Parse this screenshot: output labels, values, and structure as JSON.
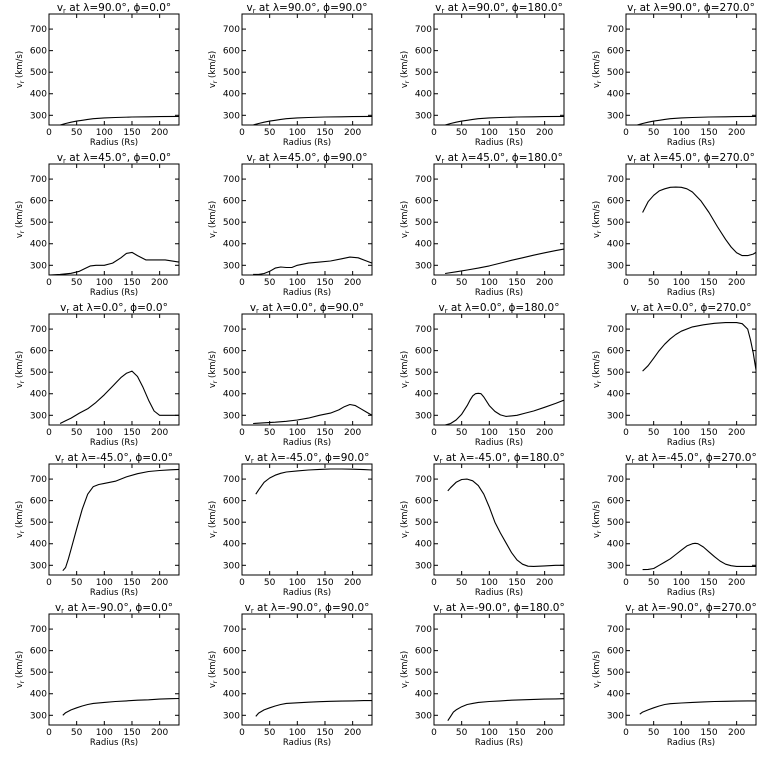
{
  "chart_data": {
    "type": "line",
    "layout": "5x4 grid",
    "xlabel": "Radius (Rs)",
    "ylabel": "v<sub>r</sub> (km/s)",
    "xlim": [
      0,
      235
    ],
    "ylim": [
      255,
      770
    ],
    "xticks": [
      0,
      50,
      100,
      150,
      200
    ],
    "yticks": [
      300,
      400,
      500,
      600,
      700
    ],
    "panels": [
      {
        "title_lambda": "90.0",
        "title_phi": "0.0",
        "x": [
          20,
          30,
          40,
          50,
          60,
          70,
          80,
          100,
          120,
          150,
          180,
          200,
          235
        ],
        "y": [
          255,
          262,
          268,
          273,
          277,
          281,
          284,
          288,
          290,
          292,
          293,
          294,
          295
        ]
      },
      {
        "title_lambda": "90.0",
        "title_phi": "90.0",
        "x": [
          20,
          30,
          40,
          50,
          60,
          70,
          80,
          100,
          120,
          150,
          180,
          200,
          235
        ],
        "y": [
          255,
          262,
          268,
          273,
          277,
          281,
          284,
          288,
          290,
          292,
          293,
          294,
          295
        ]
      },
      {
        "title_lambda": "90.0",
        "title_phi": "180.0",
        "x": [
          20,
          30,
          40,
          50,
          60,
          70,
          80,
          100,
          120,
          150,
          180,
          200,
          235
        ],
        "y": [
          255,
          262,
          268,
          273,
          277,
          281,
          284,
          288,
          290,
          292,
          293,
          294,
          295
        ]
      },
      {
        "title_lambda": "90.0",
        "title_phi": "270.0",
        "x": [
          20,
          30,
          40,
          50,
          60,
          70,
          80,
          100,
          120,
          150,
          180,
          200,
          235
        ],
        "y": [
          255,
          262,
          268,
          273,
          277,
          281,
          284,
          288,
          290,
          292,
          293,
          294,
          295
        ]
      },
      {
        "title_lambda": "45.0",
        "title_phi": "0.0",
        "x": [
          0,
          20,
          40,
          55,
          65,
          75,
          85,
          100,
          115,
          130,
          140,
          150,
          160,
          175,
          190,
          210,
          235
        ],
        "y": [
          255,
          258,
          263,
          272,
          285,
          297,
          300,
          300,
          310,
          335,
          355,
          360,
          345,
          325,
          325,
          325,
          315
        ]
      },
      {
        "title_lambda": "45.0",
        "title_phi": "90.0",
        "x": [
          20,
          30,
          40,
          50,
          60,
          70,
          80,
          90,
          100,
          120,
          140,
          160,
          180,
          195,
          210,
          225,
          235
        ],
        "y": [
          258,
          258,
          262,
          272,
          287,
          292,
          290,
          290,
          300,
          310,
          315,
          320,
          330,
          338,
          335,
          320,
          310
        ]
      },
      {
        "title_lambda": "45.0",
        "title_phi": "180.0",
        "x": [
          20,
          40,
          60,
          80,
          100,
          120,
          140,
          160,
          180,
          200,
          220,
          235
        ],
        "y": [
          262,
          270,
          278,
          287,
          297,
          310,
          323,
          335,
          347,
          358,
          368,
          375
        ]
      },
      {
        "title_lambda": "45.0",
        "title_phi": "270.0",
        "x": [
          30,
          40,
          50,
          60,
          70,
          80,
          90,
          100,
          110,
          120,
          135,
          150,
          165,
          180,
          190,
          200,
          210,
          220,
          230,
          235
        ],
        "y": [
          545,
          595,
          625,
          645,
          655,
          662,
          663,
          662,
          655,
          640,
          600,
          545,
          480,
          420,
          385,
          358,
          345,
          345,
          352,
          360
        ]
      },
      {
        "title_lambda": "0.0",
        "title_phi": "0.0",
        "x": [
          20,
          30,
          40,
          55,
          70,
          85,
          100,
          115,
          130,
          140,
          150,
          160,
          170,
          180,
          190,
          200,
          215,
          235
        ],
        "y": [
          262,
          275,
          287,
          310,
          330,
          360,
          395,
          435,
          475,
          495,
          505,
          480,
          430,
          370,
          320,
          300,
          300,
          300
        ]
      },
      {
        "title_lambda": "0.0",
        "title_phi": "90.0",
        "x": [
          20,
          40,
          60,
          80,
          100,
          120,
          140,
          160,
          175,
          185,
          195,
          205,
          215,
          225,
          235
        ],
        "y": [
          262,
          265,
          268,
          272,
          278,
          287,
          300,
          310,
          325,
          340,
          350,
          345,
          330,
          315,
          300
        ]
      },
      {
        "title_lambda": "0.0",
        "title_phi": "180.0",
        "x": [
          20,
          30,
          40,
          50,
          55,
          60,
          65,
          70,
          75,
          80,
          85,
          90,
          100,
          110,
          120,
          130,
          140,
          150,
          165,
          180,
          200,
          220,
          235
        ],
        "y": [
          255,
          262,
          278,
          305,
          325,
          345,
          370,
          390,
          400,
          402,
          400,
          385,
          345,
          318,
          302,
          295,
          297,
          300,
          310,
          320,
          337,
          355,
          370
        ]
      },
      {
        "title_lambda": "0.0",
        "title_phi": "270.0",
        "x": [
          30,
          40,
          50,
          60,
          70,
          80,
          90,
          100,
          120,
          140,
          160,
          180,
          200,
          210,
          220,
          225,
          230,
          235
        ],
        "y": [
          505,
          530,
          565,
          600,
          630,
          655,
          675,
          690,
          710,
          720,
          727,
          730,
          730,
          725,
          700,
          650,
          590,
          510
        ]
      },
      {
        "title_lambda": "-45.0",
        "title_phi": "0.0",
        "x": [
          25,
          30,
          35,
          40,
          50,
          60,
          70,
          80,
          90,
          100,
          120,
          140,
          160,
          180,
          200,
          220,
          235
        ],
        "y": [
          275,
          290,
          330,
          375,
          470,
          560,
          630,
          665,
          675,
          680,
          690,
          710,
          725,
          735,
          740,
          743,
          745
        ]
      },
      {
        "title_lambda": "-45.0",
        "title_phi": "90.0",
        "x": [
          25,
          30,
          40,
          50,
          60,
          70,
          80,
          100,
          120,
          140,
          160,
          180,
          200,
          220,
          235
        ],
        "y": [
          630,
          650,
          685,
          705,
          718,
          727,
          733,
          738,
          742,
          745,
          747,
          747,
          746,
          744,
          742
        ]
      },
      {
        "title_lambda": "-45.0",
        "title_phi": "180.0",
        "x": [
          25,
          30,
          40,
          50,
          60,
          70,
          80,
          90,
          100,
          110,
          120,
          130,
          140,
          150,
          160,
          170,
          180,
          190,
          200,
          220,
          235
        ],
        "y": [
          645,
          660,
          685,
          698,
          700,
          692,
          670,
          630,
          570,
          500,
          450,
          405,
          360,
          325,
          305,
          296,
          295,
          296,
          297,
          300,
          300
        ]
      },
      {
        "title_lambda": "-45.0",
        "title_phi": "270.0",
        "x": [
          30,
          40,
          50,
          60,
          70,
          80,
          90,
          100,
          110,
          120,
          125,
          130,
          140,
          150,
          160,
          170,
          180,
          190,
          200,
          220,
          235
        ],
        "y": [
          280,
          281,
          285,
          300,
          315,
          330,
          350,
          370,
          390,
          400,
          402,
          400,
          385,
          362,
          340,
          320,
          305,
          298,
          295,
          295,
          295
        ]
      },
      {
        "title_lambda": "-90.0",
        "title_phi": "0.0",
        "x": [
          25,
          30,
          40,
          50,
          60,
          70,
          80,
          100,
          120,
          140,
          160,
          180,
          200,
          220,
          235
        ],
        "y": [
          300,
          312,
          325,
          335,
          343,
          350,
          355,
          360,
          364,
          367,
          370,
          372,
          375,
          377,
          378
        ]
      },
      {
        "title_lambda": "-90.0",
        "title_phi": "90.0",
        "x": [
          25,
          30,
          40,
          50,
          60,
          70,
          80,
          100,
          120,
          140,
          160,
          180,
          200,
          220,
          235
        ],
        "y": [
          295,
          310,
          325,
          335,
          343,
          350,
          355,
          358,
          361,
          363,
          365,
          366,
          367,
          368,
          368
        ]
      },
      {
        "title_lambda": "-90.0",
        "title_phi": "180.0",
        "x": [
          25,
          30,
          35,
          40,
          50,
          60,
          70,
          80,
          100,
          120,
          140,
          160,
          180,
          200,
          220,
          235
        ],
        "y": [
          275,
          295,
          315,
          325,
          340,
          350,
          355,
          360,
          364,
          367,
          370,
          372,
          374,
          375,
          376,
          377
        ]
      },
      {
        "title_lambda": "-90.0",
        "title_phi": "270.0",
        "x": [
          25,
          30,
          40,
          50,
          60,
          70,
          80,
          100,
          120,
          140,
          160,
          180,
          200,
          220,
          235
        ],
        "y": [
          305,
          315,
          325,
          335,
          343,
          350,
          354,
          357,
          360,
          362,
          364,
          365,
          366,
          367,
          367
        ]
      }
    ]
  }
}
